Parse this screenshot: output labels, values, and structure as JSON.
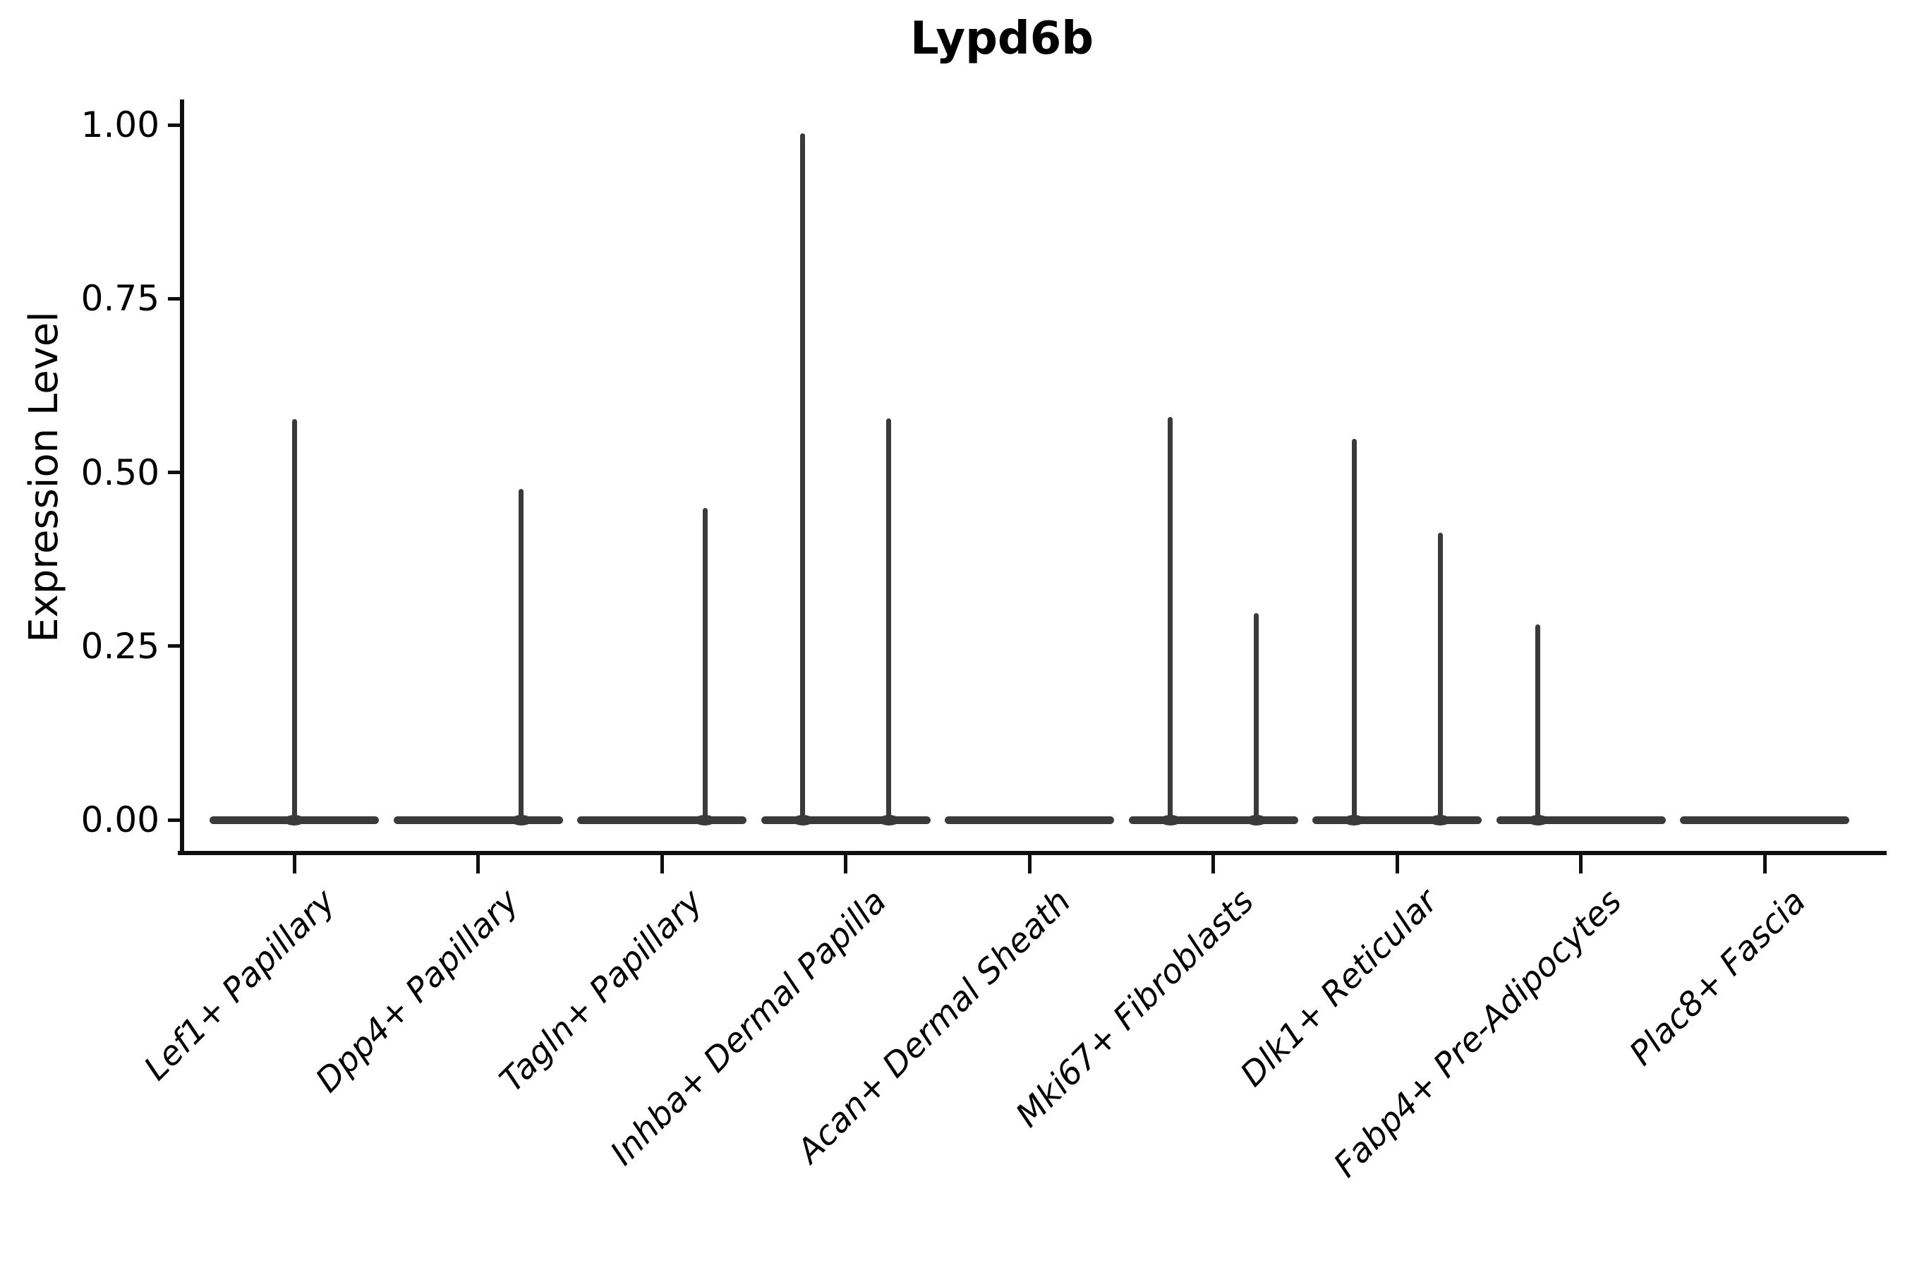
{
  "figure": {
    "title": "Lypd6b",
    "background": "#ffffff"
  },
  "colors": {
    "violin": "#3a3a3a",
    "axis": "#0f0f0f",
    "text": "#000000"
  },
  "chart_data": {
    "type": "violin",
    "title": "Lypd6b",
    "xlabel": "",
    "ylabel": "Expression Level",
    "ylim": [
      0,
      1.0
    ],
    "grid": "off",
    "legend": "none",
    "yticks": [
      {
        "label": "1.00",
        "value": 1.0
      },
      {
        "label": "0.75",
        "value": 0.75
      },
      {
        "label": "0.50",
        "value": 0.5
      },
      {
        "label": "0.25",
        "value": 0.25
      },
      {
        "label": "0.00",
        "value": 0.0
      }
    ],
    "categories": [
      "Lef1+ Papillary",
      "Dpp4+ Papillary",
      "Tagln+ Papillary",
      "Inhba+ Dermal Papilla",
      "Acan+ Dermal Sheath",
      "Mki67+ Fibroblasts",
      "Dlk1+ Reticular",
      "Fabp4+ Pre-Adipocytes",
      "Plac8+ Fascia"
    ],
    "series": [
      {
        "category": "Lef1+ Papillary",
        "baseline_value": 0.0,
        "spikes": [
          {
            "side": "center",
            "max": 0.577
          }
        ]
      },
      {
        "category": "Dpp4+ Papillary",
        "baseline_value": 0.0,
        "spikes": [
          {
            "side": "right",
            "max": 0.476
          }
        ]
      },
      {
        "category": "Tagln+ Papillary",
        "baseline_value": 0.0,
        "spikes": [
          {
            "side": "right",
            "max": 0.449
          }
        ]
      },
      {
        "category": "Inhba+ Dermal Papilla",
        "baseline_value": 0.0,
        "spikes": [
          {
            "side": "left",
            "max": 0.988
          },
          {
            "side": "right",
            "max": 0.578
          }
        ]
      },
      {
        "category": "Acan+ Dermal Sheath",
        "baseline_value": 0.0,
        "spikes": []
      },
      {
        "category": "Mki67+ Fibroblasts",
        "baseline_value": 0.0,
        "spikes": [
          {
            "side": "left",
            "max": 0.58
          },
          {
            "side": "right",
            "max": 0.297
          }
        ]
      },
      {
        "category": "Dlk1+ Reticular",
        "baseline_value": 0.0,
        "spikes": [
          {
            "side": "left",
            "max": 0.548
          },
          {
            "side": "right",
            "max": 0.413
          }
        ]
      },
      {
        "category": "Fabp4+ Pre-Adipocytes",
        "baseline_value": 0.0,
        "spikes": [
          {
            "side": "left",
            "max": 0.281
          }
        ]
      },
      {
        "category": "Plac8+ Fascia",
        "baseline_value": 0.0,
        "spikes": []
      }
    ]
  }
}
